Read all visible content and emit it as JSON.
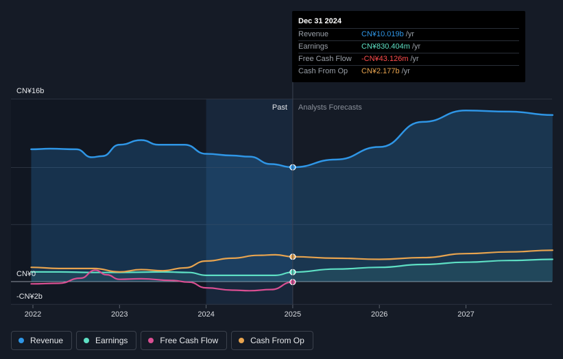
{
  "chart_data": {
    "type": "line",
    "title": "",
    "x_ticks": [
      "2022",
      "2023",
      "2024",
      "2025",
      "2026",
      "2027"
    ],
    "y_labels": {
      "top": "CN¥16b",
      "zero": "CN¥0",
      "bottom": "-CN¥2b"
    },
    "ylim": [
      -2,
      16
    ],
    "xlim": [
      2021.78,
      2028.0
    ],
    "past_label": "Past",
    "forecast_label": "Analysts Forecasts",
    "divider_x": 2025.0,
    "highlight_start_x": 2024.0,
    "series": [
      {
        "name": "Revenue",
        "color": "#2f96e6",
        "points": [
          [
            2021.98,
            11.6
          ],
          [
            2022.2,
            11.65
          ],
          [
            2022.5,
            11.6
          ],
          [
            2022.68,
            10.9
          ],
          [
            2022.8,
            11.0
          ],
          [
            2023.0,
            12.0
          ],
          [
            2023.25,
            12.4
          ],
          [
            2023.45,
            12.0
          ],
          [
            2023.75,
            12.0
          ],
          [
            2024.0,
            11.2
          ],
          [
            2024.3,
            11.05
          ],
          [
            2024.5,
            10.95
          ],
          [
            2024.75,
            10.3
          ],
          [
            2025.0,
            10.02
          ],
          [
            2025.5,
            10.7
          ],
          [
            2026.0,
            11.8
          ],
          [
            2026.5,
            14.0
          ],
          [
            2027.0,
            15.0
          ],
          [
            2027.5,
            14.9
          ],
          [
            2028.0,
            14.6
          ]
        ]
      },
      {
        "name": "Earnings",
        "color": "#5ee0c4",
        "points": [
          [
            2021.98,
            0.85
          ],
          [
            2022.3,
            0.85
          ],
          [
            2022.7,
            0.8
          ],
          [
            2023.0,
            0.8
          ],
          [
            2023.5,
            0.85
          ],
          [
            2023.8,
            0.8
          ],
          [
            2024.0,
            0.55
          ],
          [
            2024.5,
            0.55
          ],
          [
            2024.8,
            0.55
          ],
          [
            2025.0,
            0.83
          ],
          [
            2025.5,
            1.1
          ],
          [
            2026.0,
            1.25
          ],
          [
            2026.5,
            1.5
          ],
          [
            2027.0,
            1.7
          ],
          [
            2027.5,
            1.85
          ],
          [
            2028.0,
            1.95
          ]
        ]
      },
      {
        "name": "Free Cash Flow",
        "color": "#d94f92",
        "points": [
          [
            2021.98,
            -0.2
          ],
          [
            2022.3,
            -0.15
          ],
          [
            2022.55,
            0.3
          ],
          [
            2022.72,
            1.0
          ],
          [
            2022.85,
            0.6
          ],
          [
            2023.0,
            0.2
          ],
          [
            2023.25,
            0.25
          ],
          [
            2023.6,
            0.1
          ],
          [
            2023.8,
            -0.05
          ],
          [
            2024.0,
            -0.55
          ],
          [
            2024.3,
            -0.75
          ],
          [
            2024.5,
            -0.8
          ],
          [
            2024.75,
            -0.7
          ],
          [
            2025.0,
            -0.04
          ]
        ]
      },
      {
        "name": "Cash From Op",
        "color": "#e8a44f",
        "points": [
          [
            2021.98,
            1.25
          ],
          [
            2022.3,
            1.15
          ],
          [
            2022.7,
            1.15
          ],
          [
            2023.0,
            0.85
          ],
          [
            2023.25,
            1.05
          ],
          [
            2023.5,
            0.95
          ],
          [
            2023.75,
            1.2
          ],
          [
            2024.0,
            1.8
          ],
          [
            2024.3,
            2.05
          ],
          [
            2024.6,
            2.3
          ],
          [
            2024.8,
            2.35
          ],
          [
            2025.0,
            2.18
          ],
          [
            2025.5,
            2.05
          ],
          [
            2026.0,
            1.95
          ],
          [
            2026.5,
            2.1
          ],
          [
            2027.0,
            2.45
          ],
          [
            2027.5,
            2.6
          ],
          [
            2028.0,
            2.75
          ]
        ]
      }
    ],
    "highlight_points": [
      {
        "series": "Revenue",
        "x": 2025.0,
        "y": 10.02
      },
      {
        "series": "Earnings",
        "x": 2025.0,
        "y": 0.83
      },
      {
        "series": "Free Cash Flow",
        "x": 2025.0,
        "y": -0.04
      },
      {
        "series": "Cash From Op",
        "x": 2025.0,
        "y": 2.18
      }
    ]
  },
  "tooltip": {
    "date": "Dec 31 2024",
    "rows": [
      {
        "label": "Revenue",
        "value": "CN¥10.019b",
        "unit": "/yr",
        "color": "#2f96e6"
      },
      {
        "label": "Earnings",
        "value": "CN¥830.404m",
        "unit": "/yr",
        "color": "#5ee0c4"
      },
      {
        "label": "Free Cash Flow",
        "value": "-CN¥43.126m",
        "unit": "/yr",
        "color": "#ff4d4d"
      },
      {
        "label": "Cash From Op",
        "value": "CN¥2.177b",
        "unit": "/yr",
        "color": "#e8a44f"
      }
    ]
  },
  "legend": [
    {
      "label": "Revenue",
      "color": "#2f96e6"
    },
    {
      "label": "Earnings",
      "color": "#5ee0c4"
    },
    {
      "label": "Free Cash Flow",
      "color": "#d94f92"
    },
    {
      "label": "Cash From Op",
      "color": "#e8a44f"
    }
  ]
}
